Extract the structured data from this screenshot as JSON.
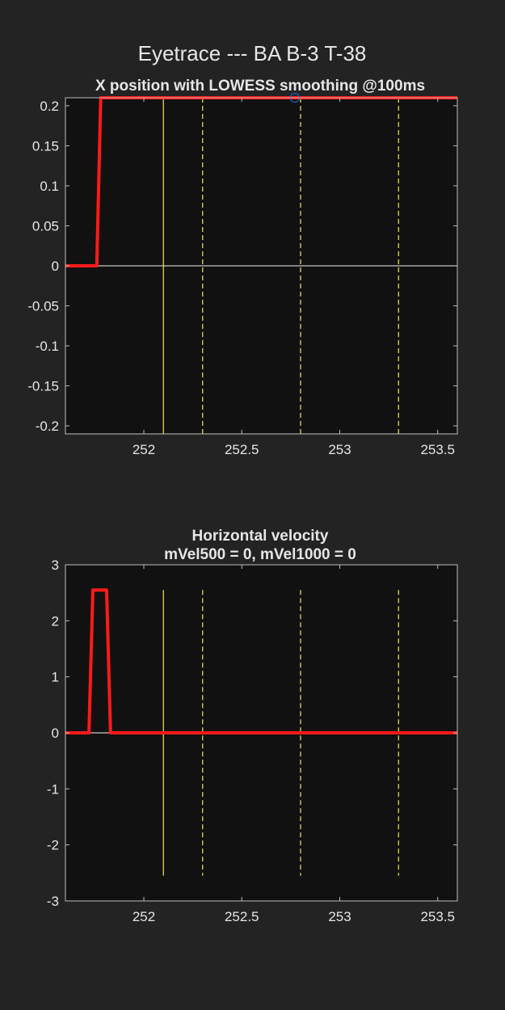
{
  "figure": {
    "title": "Eyetrace --- BA B-3 T-38",
    "background": "#232323",
    "axes_background": "#111111",
    "text_color": "#e6e6e6"
  },
  "chart_data": [
    {
      "type": "line",
      "title": "X position with LOWESS smoothing @100ms",
      "xlabel": "",
      "ylabel": "",
      "xlim": [
        251.6,
        253.6
      ],
      "ylim": [
        -0.21,
        0.21
      ],
      "xticks": [
        252,
        252.5,
        253,
        253.5
      ],
      "xtick_labels": [
        "252",
        "252.5",
        "253",
        "253.5"
      ],
      "yticks": [
        0.2,
        0.15,
        0.1,
        0.05,
        0,
        -0.05,
        -0.1,
        -0.15,
        -0.2
      ],
      "ytick_labels": [
        "0.2",
        "0.15",
        "0.1",
        "0.05",
        "0",
        "-0.05",
        "-0.1",
        "-0.15",
        "-0.2"
      ],
      "grid": false,
      "zero_line": {
        "y": 0,
        "color": "#c8c8c8"
      },
      "event_lines": [
        {
          "x": 252.1,
          "style": "solid",
          "color": "#e6d84a"
        },
        {
          "x": 252.3,
          "style": "dashed",
          "color": "#e6d84a"
        },
        {
          "x": 252.8,
          "style": "dashed",
          "color": "#e6d84a"
        },
        {
          "x": 253.3,
          "style": "dashed",
          "color": "#e6d84a"
        }
      ],
      "series": [
        {
          "color": "#ff1a1a",
          "x": [
            251.6,
            251.76,
            251.78,
            253.6
          ],
          "y": [
            0,
            0,
            0.21,
            0.21
          ]
        }
      ],
      "markers": [
        {
          "x": 252.77,
          "y": 0.21,
          "shape": "circle",
          "color": "#1f5fbf"
        }
      ]
    },
    {
      "type": "line",
      "title": "Horizontal velocity",
      "subtitle": "mVel500 = 0, mVel1000 = 0",
      "xlabel": "",
      "ylabel": "",
      "xlim": [
        251.6,
        253.6
      ],
      "ylim": [
        -3,
        3
      ],
      "xticks": [
        252,
        252.5,
        253,
        253.5
      ],
      "xtick_labels": [
        "252",
        "252.5",
        "253",
        "253.5"
      ],
      "yticks": [
        3,
        2,
        1,
        0,
        -1,
        -2,
        -3
      ],
      "ytick_labels": [
        "3",
        "2",
        "1",
        "0",
        "-1",
        "-2",
        "-3"
      ],
      "grid": false,
      "zero_line": {
        "y": 0,
        "color": "#c8c8c8"
      },
      "event_lines": [
        {
          "x": 252.1,
          "style": "solid",
          "color": "#e6d84a",
          "y_range": [
            -2.55,
            2.55
          ]
        },
        {
          "x": 252.3,
          "style": "dashed",
          "color": "#e6d84a",
          "y_range": [
            -2.55,
            2.55
          ]
        },
        {
          "x": 252.8,
          "style": "dashed",
          "color": "#e6d84a",
          "y_range": [
            -2.55,
            2.55
          ]
        },
        {
          "x": 253.3,
          "style": "dashed",
          "color": "#e6d84a",
          "y_range": [
            -2.55,
            2.55
          ]
        }
      ],
      "series": [
        {
          "color": "#ff1a1a",
          "x": [
            251.6,
            251.72,
            251.74,
            251.81,
            251.83,
            253.6
          ],
          "y": [
            0,
            0,
            2.55,
            2.55,
            0,
            0
          ]
        }
      ],
      "markers": []
    }
  ]
}
